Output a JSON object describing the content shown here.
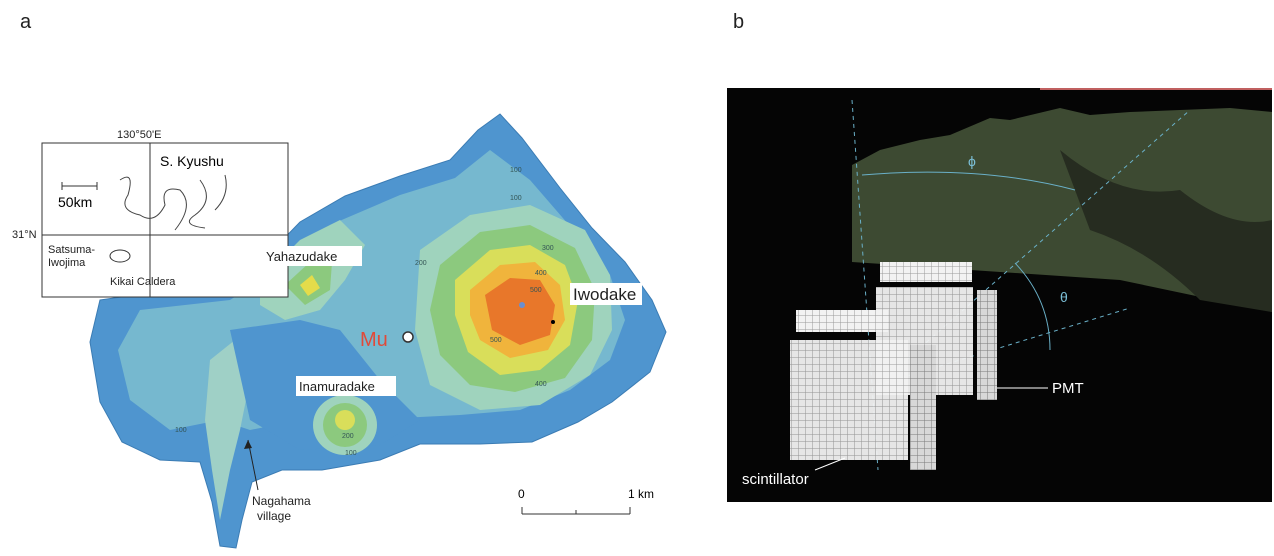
{
  "panel_a": {
    "label": "a",
    "inset": {
      "longitude": "130°50'E",
      "latitude": "31°N",
      "region": "S. Kyushu",
      "scale": "50km",
      "island": [
        "Satsuma-",
        "Iwojima"
      ],
      "caldera": "Kikai Caldera"
    },
    "places": {
      "yahazudake": "Yahazudake",
      "iwodake": "Iwodake",
      "mu": "Mu",
      "inamuradake": "Inamuradake",
      "village": [
        "Nagahama",
        "village"
      ]
    },
    "contours": [
      "100",
      "100",
      "300",
      "200",
      "400",
      "500",
      "500",
      "400",
      "200",
      "100",
      "100"
    ],
    "scale_bar": {
      "start": "0",
      "end": "1 km"
    }
  },
  "panel_b": {
    "label": "b",
    "phi": "ϕ",
    "theta": "θ",
    "pmt": "PMT",
    "scintillator": "scintillator"
  }
}
